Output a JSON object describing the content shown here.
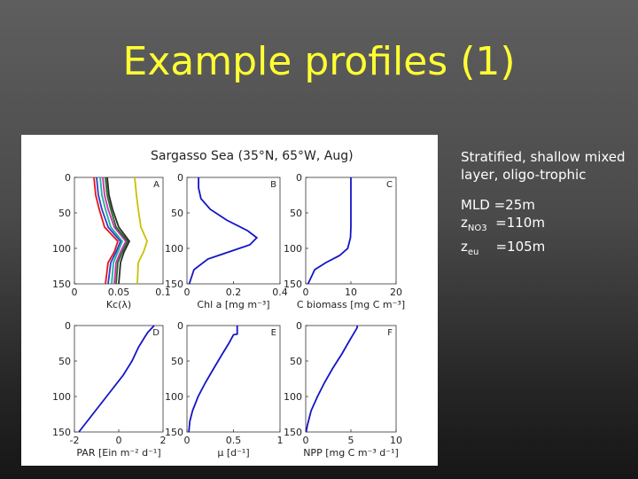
{
  "slide": {
    "title": "Example profiles (1)"
  },
  "figure": {
    "caption": "Sargasso Sea (35°N, 65°W, Aug)"
  },
  "notes": {
    "description": "Stratified, shallow mixed layer, oligo-trophic",
    "mld": "MLD =25m",
    "z_no3_symbol": "z",
    "z_no3_sub": "NO3",
    "z_no3_value": "=110m",
    "z_eu_symbol": "z",
    "z_eu_sub": "eu",
    "z_eu_value": "=105m"
  },
  "chart_data": [
    {
      "type": "line",
      "panel": "A",
      "xlabel": "Kc(λ)",
      "xlim": [
        0,
        0.1
      ],
      "ylim": [
        0,
        150
      ],
      "xticks": [
        0,
        0.05,
        0.1
      ],
      "xtick_labels": [
        "0",
        "0.05",
        "0.1"
      ],
      "yticks": [
        0,
        50,
        100,
        150
      ],
      "colors": [
        "#e8121f",
        "#2c3fc7",
        "#1db19d",
        "#cf2eb1",
        "#1f6a23",
        "#2a2a2a",
        "#c8c200"
      ],
      "series": [
        {
          "y": [
            0,
            25,
            45,
            70,
            90,
            105,
            120,
            150
          ],
          "x": [
            0.022,
            0.024,
            0.028,
            0.034,
            0.049,
            0.045,
            0.038,
            0.035
          ]
        },
        {
          "y": [
            0,
            25,
            45,
            70,
            90,
            105,
            120,
            150
          ],
          "x": [
            0.025,
            0.027,
            0.031,
            0.038,
            0.052,
            0.047,
            0.041,
            0.038
          ]
        },
        {
          "y": [
            0,
            25,
            45,
            70,
            90,
            105,
            120,
            150
          ],
          "x": [
            0.029,
            0.031,
            0.035,
            0.041,
            0.054,
            0.049,
            0.044,
            0.042
          ]
        },
        {
          "y": [
            0,
            25,
            45,
            70,
            90,
            105,
            120,
            150
          ],
          "x": [
            0.032,
            0.034,
            0.038,
            0.045,
            0.058,
            0.052,
            0.047,
            0.045
          ]
        },
        {
          "y": [
            0,
            25,
            45,
            70,
            90,
            105,
            120,
            150
          ],
          "x": [
            0.035,
            0.037,
            0.041,
            0.047,
            0.06,
            0.054,
            0.049,
            0.047
          ]
        },
        {
          "y": [
            0,
            25,
            45,
            70,
            90,
            105,
            120,
            150
          ],
          "x": [
            0.037,
            0.039,
            0.043,
            0.05,
            0.062,
            0.056,
            0.052,
            0.05
          ]
        },
        {
          "y": [
            0,
            25,
            45,
            70,
            90,
            105,
            120,
            150
          ],
          "x": [
            0.068,
            0.07,
            0.072,
            0.075,
            0.082,
            0.078,
            0.072,
            0.071
          ]
        }
      ]
    },
    {
      "type": "line",
      "panel": "B",
      "xlabel": "Chl a [mg m⁻³]",
      "xlim": [
        0,
        0.4
      ],
      "ylim": [
        0,
        150
      ],
      "xticks": [
        0,
        0.2,
        0.4
      ],
      "xtick_labels": [
        "0",
        "0.2",
        "0.4"
      ],
      "yticks": [
        0,
        50,
        100,
        150
      ],
      "colors": [
        "#1414c8"
      ],
      "series": [
        {
          "y": [
            0,
            15,
            30,
            45,
            60,
            75,
            85,
            95,
            105,
            115,
            130,
            150
          ],
          "x": [
            0.05,
            0.05,
            0.06,
            0.1,
            0.17,
            0.26,
            0.3,
            0.27,
            0.18,
            0.09,
            0.03,
            0.01
          ]
        }
      ]
    },
    {
      "type": "line",
      "panel": "C",
      "xlabel": "C biomass [mg C m⁻³]",
      "xlim": [
        0,
        20
      ],
      "ylim": [
        0,
        150
      ],
      "xticks": [
        0,
        10,
        20
      ],
      "xtick_labels": [
        "0",
        "10",
        "20"
      ],
      "yticks": [
        0,
        50,
        100,
        150
      ],
      "colors": [
        "#1414c8"
      ],
      "series": [
        {
          "y": [
            0,
            40,
            70,
            85,
            100,
            110,
            120,
            130,
            150
          ],
          "x": [
            10,
            10,
            10,
            9.9,
            9.3,
            7.5,
            4.5,
            2.0,
            0.5
          ]
        }
      ]
    },
    {
      "type": "line",
      "panel": "D",
      "xlabel": "PAR [Ein m⁻² d⁻¹]",
      "xlim": [
        -2,
        2
      ],
      "ylim": [
        0,
        150
      ],
      "xticks": [
        -2,
        0,
        2
      ],
      "xtick_labels": [
        "-2",
        "0",
        "2"
      ],
      "yticks": [
        0,
        50,
        100,
        150
      ],
      "colors": [
        "#1414c8"
      ],
      "series": [
        {
          "y": [
            0,
            10,
            30,
            50,
            70,
            90,
            110,
            130,
            150
          ],
          "x": [
            1.6,
            1.3,
            0.9,
            0.6,
            0.2,
            -0.3,
            -0.8,
            -1.3,
            -1.8
          ]
        }
      ]
    },
    {
      "type": "line",
      "panel": "E",
      "xlabel": "μ [d⁻¹]",
      "xlim": [
        0,
        1
      ],
      "ylim": [
        0,
        150
      ],
      "xticks": [
        0,
        0.5,
        1
      ],
      "xtick_labels": [
        "0",
        "0.5",
        "1"
      ],
      "yticks": [
        0,
        50,
        100,
        150
      ],
      "colors": [
        "#1414c8"
      ],
      "series": [
        {
          "y": [
            0,
            12,
            13,
            25,
            40,
            60,
            80,
            100,
            120,
            135,
            150
          ],
          "x": [
            0.54,
            0.54,
            0.5,
            0.45,
            0.38,
            0.29,
            0.2,
            0.12,
            0.06,
            0.03,
            0.02
          ]
        }
      ]
    },
    {
      "type": "line",
      "panel": "F",
      "xlabel": "NPP [mg C m⁻³ d⁻¹]",
      "xlim": [
        0,
        10
      ],
      "ylim": [
        0,
        150
      ],
      "xticks": [
        0,
        5,
        10
      ],
      "xtick_labels": [
        "0",
        "5",
        "10"
      ],
      "yticks": [
        0,
        50,
        100,
        150
      ],
      "colors": [
        "#1414c8"
      ],
      "series": [
        {
          "y": [
            0,
            3,
            20,
            40,
            60,
            80,
            100,
            120,
            140,
            150
          ],
          "x": [
            5.7,
            5.7,
            4.9,
            4.0,
            3.0,
            2.1,
            1.3,
            0.6,
            0.2,
            0.05
          ]
        }
      ]
    }
  ]
}
